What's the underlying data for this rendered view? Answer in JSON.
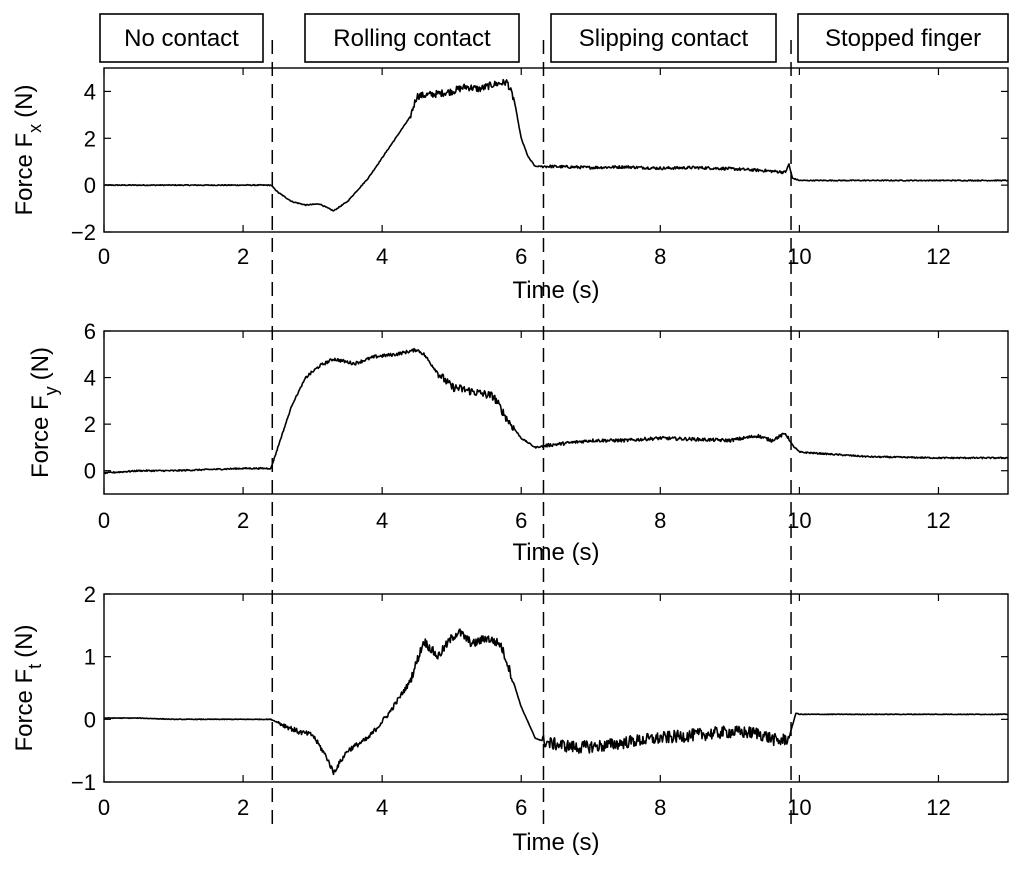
{
  "phases": [
    "No contact",
    "Rolling contact",
    "Slipping contact",
    "Stopped finger"
  ],
  "chart_data": [
    {
      "type": "line",
      "xlabel": "Time (s)",
      "ylabel_main": "Force F",
      "ylabel_sub": "x",
      "ylabel_unit": "(N)",
      "xlim": [
        0,
        13
      ],
      "ylim": [
        -2,
        5
      ],
      "xticks": [
        0,
        2,
        4,
        6,
        8,
        10,
        12
      ],
      "yticks": [
        -2,
        0,
        2,
        4
      ],
      "x": [
        0,
        0.5,
        1,
        1.5,
        2,
        2.4,
        2.5,
        2.7,
        2.9,
        3.1,
        3.3,
        3.5,
        3.8,
        4.1,
        4.4,
        4.5,
        4.8,
        5.0,
        5.2,
        5.4,
        5.6,
        5.8,
        5.9,
        6.0,
        6.1,
        6.2,
        6.4,
        7.0,
        7.5,
        8.0,
        8.5,
        9.0,
        9.5,
        9.8,
        9.85,
        9.9,
        10.0,
        11.0,
        12.0,
        13.0
      ],
      "y": [
        0.0,
        0.0,
        0.0,
        0.0,
        0.0,
        0.0,
        -0.3,
        -0.7,
        -0.85,
        -0.8,
        -1.1,
        -0.7,
        0.3,
        1.6,
        2.9,
        3.8,
        3.9,
        4.0,
        4.2,
        4.1,
        4.3,
        4.4,
        3.6,
        2.0,
        1.2,
        0.8,
        0.8,
        0.75,
        0.78,
        0.72,
        0.75,
        0.7,
        0.62,
        0.55,
        0.9,
        0.3,
        0.2,
        0.2,
        0.2,
        0.2
      ]
    },
    {
      "type": "line",
      "xlabel": "Time (s)",
      "ylabel_main": "Force F",
      "ylabel_sub": "y",
      "ylabel_unit": "(N)",
      "xlim": [
        0,
        13
      ],
      "ylim": [
        -1,
        6
      ],
      "xticks": [
        0,
        2,
        4,
        6,
        8,
        10,
        12
      ],
      "yticks": [
        0,
        2,
        4,
        6
      ],
      "x": [
        0,
        0.5,
        1.0,
        1.5,
        2.0,
        2.4,
        2.5,
        2.7,
        2.9,
        3.1,
        3.3,
        3.6,
        3.9,
        4.2,
        4.5,
        4.6,
        4.8,
        5.0,
        5.3,
        5.6,
        5.8,
        6.0,
        6.2,
        6.4,
        7.0,
        7.5,
        8.0,
        8.5,
        9.0,
        9.4,
        9.6,
        9.8,
        9.9,
        10.0,
        10.5,
        11.0,
        12.0,
        13.0
      ],
      "y": [
        -0.1,
        0.0,
        0.0,
        0.05,
        0.1,
        0.1,
        1.0,
        2.8,
        4.0,
        4.5,
        4.8,
        4.6,
        4.9,
        5.0,
        5.2,
        5.0,
        4.2,
        3.6,
        3.4,
        3.2,
        2.2,
        1.4,
        1.0,
        1.1,
        1.3,
        1.3,
        1.4,
        1.35,
        1.3,
        1.5,
        1.3,
        1.6,
        1.1,
        0.8,
        0.7,
        0.6,
        0.55,
        0.55
      ]
    },
    {
      "type": "line",
      "xlabel": "Time (s)",
      "ylabel_main": "Force F",
      "ylabel_sub": "t",
      "ylabel_unit": "(N)",
      "xlim": [
        0,
        13
      ],
      "ylim": [
        -1,
        2
      ],
      "xticks": [
        0,
        2,
        4,
        6,
        8,
        10,
        12
      ],
      "yticks": [
        -1,
        0,
        1,
        2
      ],
      "x": [
        0,
        0.5,
        1.0,
        1.5,
        2.0,
        2.4,
        2.6,
        2.8,
        3.0,
        3.2,
        3.3,
        3.5,
        3.8,
        4.1,
        4.4,
        4.6,
        4.8,
        5.0,
        5.1,
        5.3,
        5.5,
        5.7,
        5.8,
        6.0,
        6.2,
        6.4,
        6.8,
        7.2,
        7.6,
        8.0,
        8.5,
        9.0,
        9.4,
        9.7,
        9.85,
        9.95,
        10.0,
        11.0,
        12.0,
        13.0
      ],
      "y": [
        0.02,
        0.02,
        0.0,
        0.0,
        0.0,
        0.0,
        -0.1,
        -0.2,
        -0.25,
        -0.6,
        -0.85,
        -0.5,
        -0.3,
        0.1,
        0.6,
        1.25,
        1.0,
        1.3,
        1.4,
        1.2,
        1.3,
        1.2,
        0.9,
        0.2,
        -0.3,
        -0.38,
        -0.45,
        -0.42,
        -0.35,
        -0.3,
        -0.25,
        -0.2,
        -0.22,
        -0.35,
        -0.3,
        0.1,
        0.08,
        0.08,
        0.08,
        0.08
      ]
    }
  ],
  "dividers": [
    2.42,
    6.32,
    9.88
  ]
}
